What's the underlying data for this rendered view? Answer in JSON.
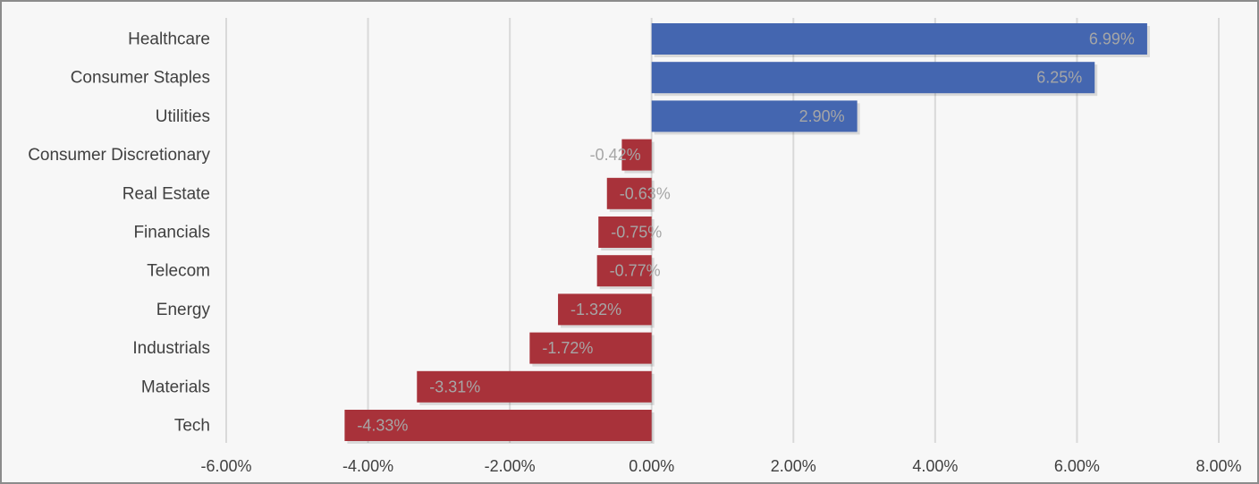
{
  "chart_data": {
    "type": "bar",
    "orientation": "horizontal",
    "categories": [
      "Healthcare",
      "Consumer Staples",
      "Utilities",
      "Consumer Discretionary",
      "Real Estate",
      "Financials",
      "Telecom",
      "Energy",
      "Industrials",
      "Materials",
      "Tech"
    ],
    "values": [
      6.99,
      6.25,
      2.9,
      -0.42,
      -0.63,
      -0.75,
      -0.77,
      -1.32,
      -1.72,
      -3.31,
      -4.33
    ],
    "data_labels": [
      "6.99%",
      "6.25%",
      "2.90%",
      "-0.42%",
      "-0.63%",
      "-0.75%",
      "-0.77%",
      "-1.32%",
      "-1.72%",
      "-3.31%",
      "-4.33%"
    ],
    "xticks": [
      -6,
      -4,
      -2,
      0,
      2,
      4,
      6,
      8
    ],
    "xtick_labels": [
      "-6.00%",
      "-4.00%",
      "-2.00%",
      "0.00%",
      "2.00%",
      "4.00%",
      "6.00%",
      "8.00%"
    ],
    "xlim": [
      -6,
      8
    ],
    "grid": true,
    "legend": "none",
    "title": "",
    "xlabel": "",
    "ylabel": "",
    "colors": {
      "positive": "#4466b0",
      "negative": "#a8323a"
    }
  }
}
